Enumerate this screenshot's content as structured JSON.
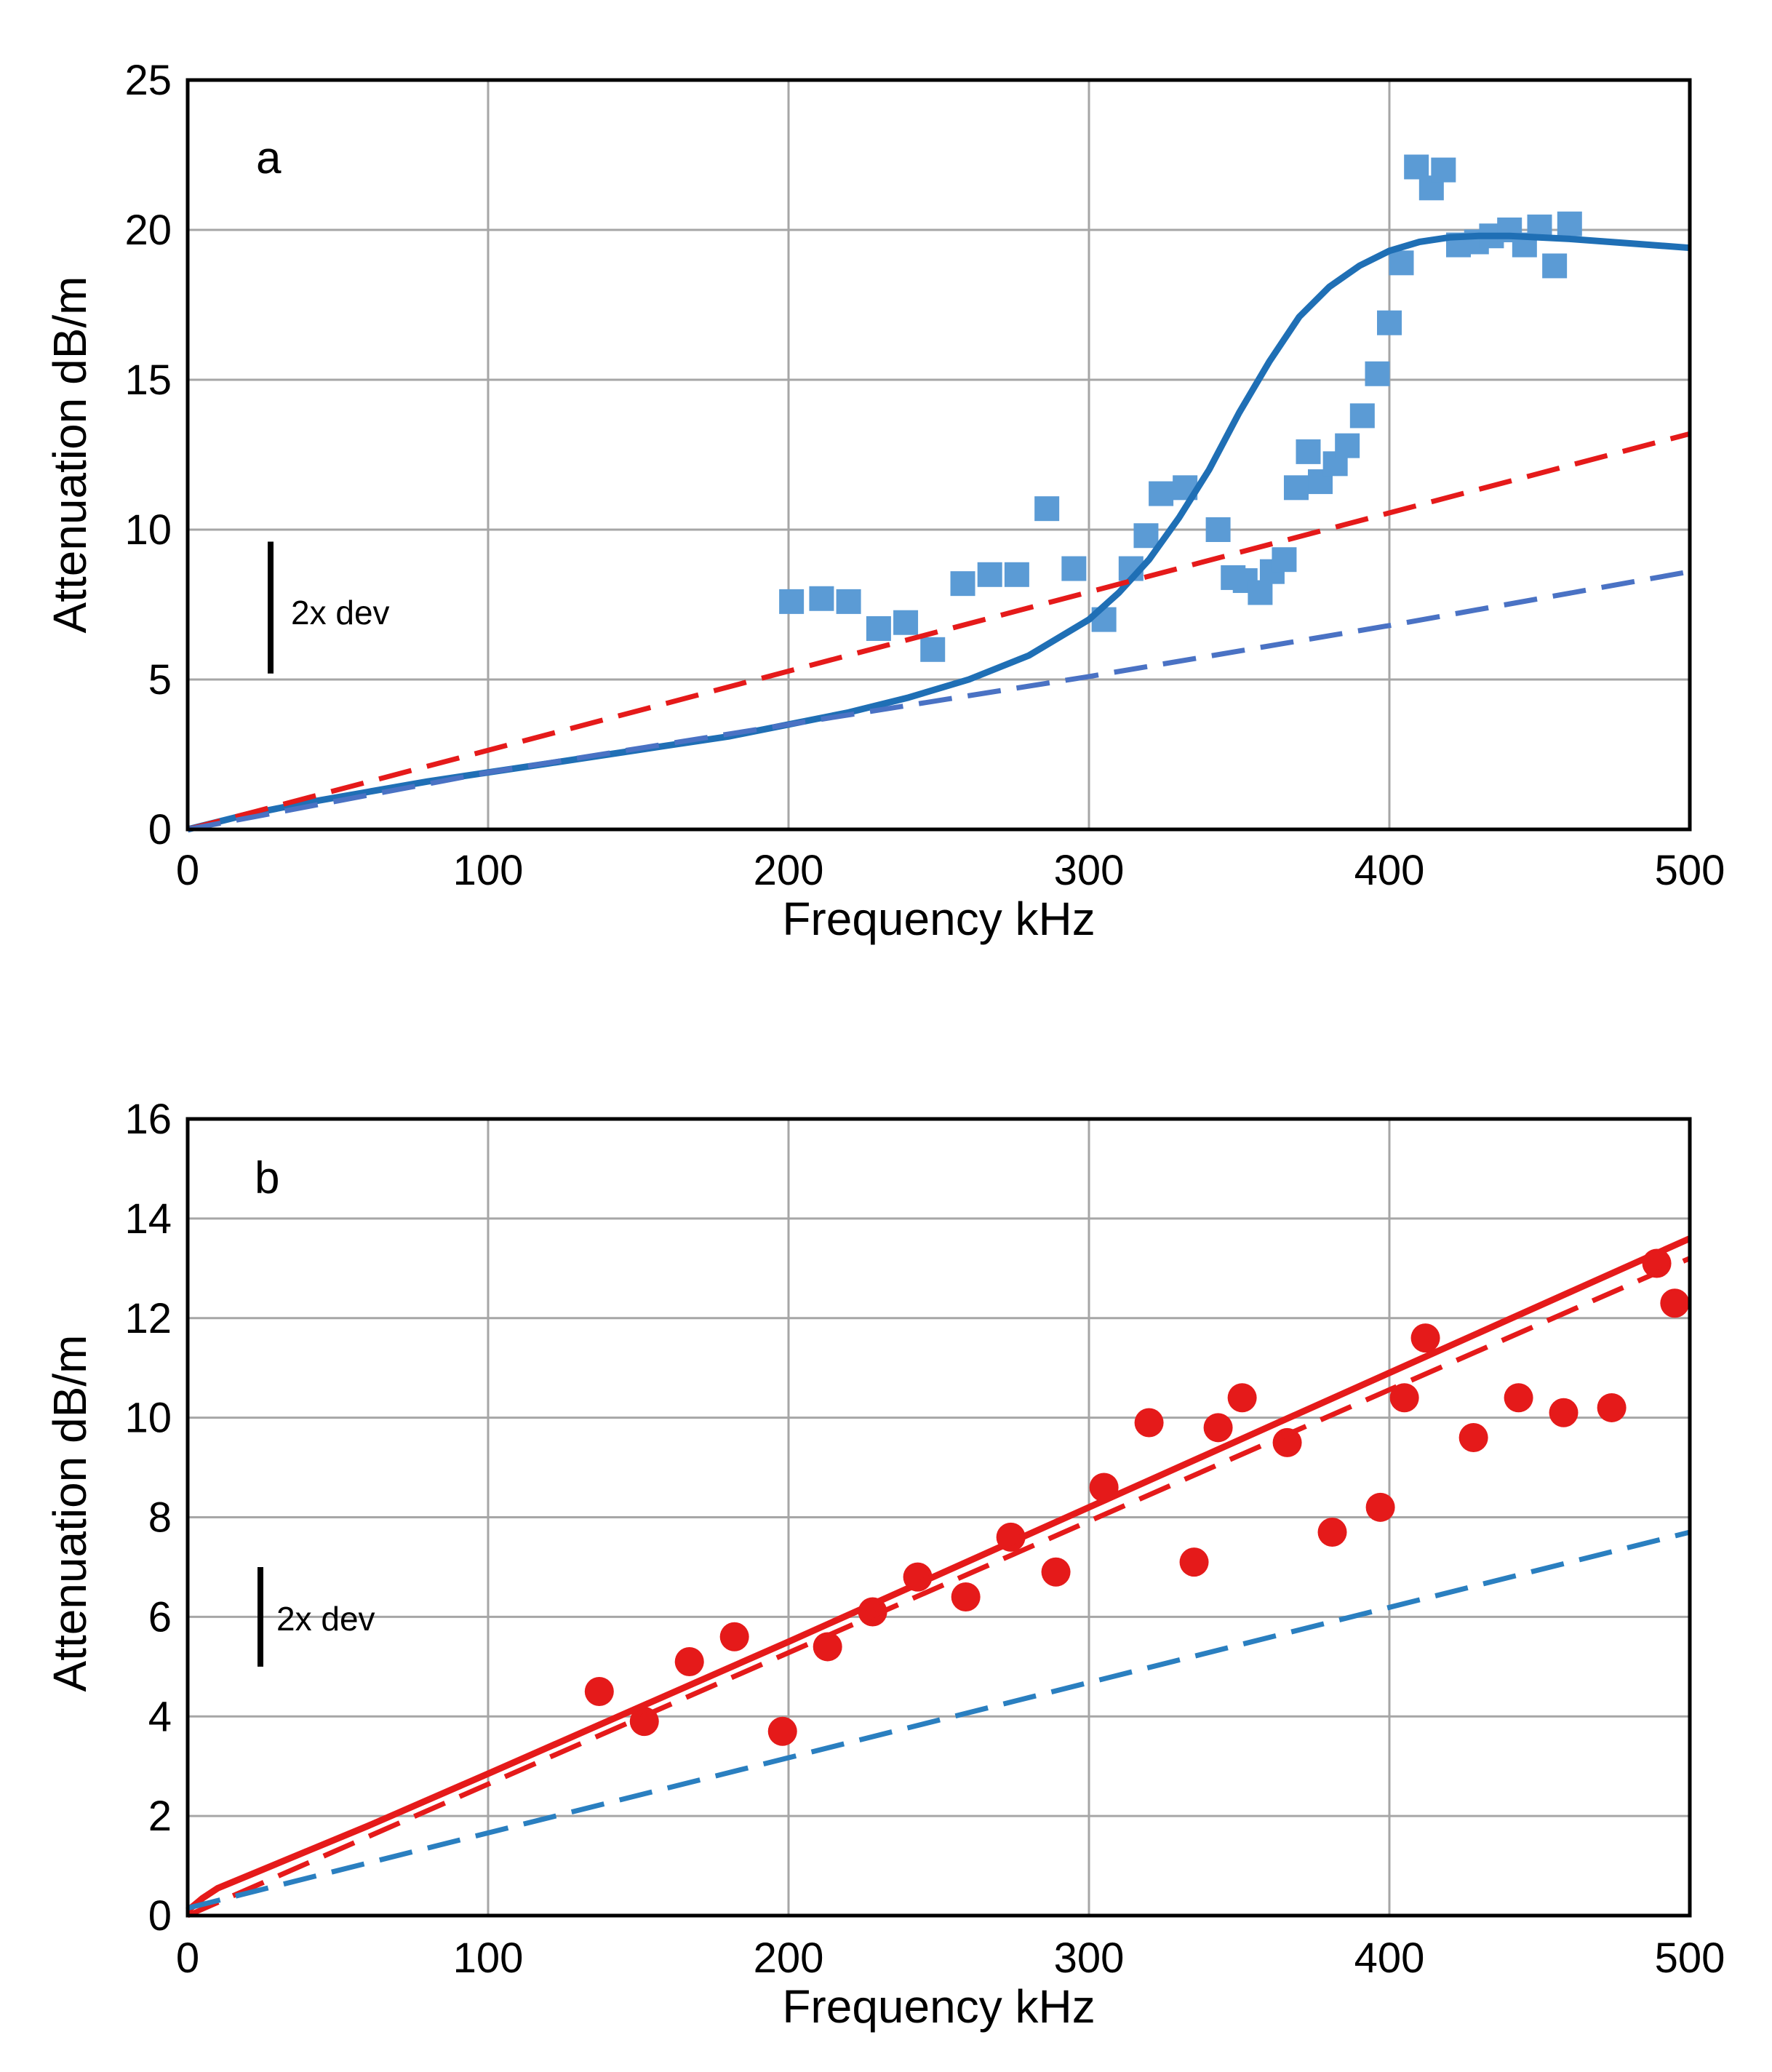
{
  "figure": {
    "colors": {
      "blue_solid": "#1f6fb5",
      "blue_squares": "#5b9bd5",
      "blue_dash_a": "#4a72c4",
      "blue_dash_b": "#2a7fc0",
      "red": "#e51a1a",
      "grid": "#a6a6a6"
    }
  },
  "chart_data": [
    {
      "type": "scatter",
      "panel_label": "a",
      "xlabel": "Frequency  kHz",
      "ylabel": "Attenuation  dB/m",
      "xlim": [
        0,
        500
      ],
      "ylim": [
        0,
        25
      ],
      "xticks": [
        0,
        100,
        200,
        300,
        400,
        500
      ],
      "yticks": [
        0,
        5,
        10,
        15,
        20,
        25
      ],
      "grid": true,
      "error_bar_label": "2x dev",
      "error_bar_range": [
        5.2,
        9.6
      ],
      "series": [
        {
          "kind": "points",
          "marker": "square",
          "color": "#5b9bd5",
          "x": [
            201,
            211,
            220,
            230,
            239,
            248,
            258,
            267,
            276,
            286,
            295,
            305,
            314,
            319,
            324,
            332,
            343,
            348,
            352,
            357,
            361,
            365,
            369,
            373,
            377,
            382,
            386,
            391,
            396,
            400,
            404,
            409,
            414,
            418,
            423,
            429,
            434,
            440,
            445,
            450,
            455,
            460
          ],
          "y": [
            7.6,
            7.7,
            7.6,
            6.7,
            6.9,
            6.0,
            8.2,
            8.5,
            8.5,
            10.7,
            8.7,
            7.0,
            8.7,
            9.8,
            11.2,
            11.4,
            10.0,
            8.4,
            8.3,
            7.9,
            8.6,
            9.0,
            11.4,
            12.6,
            11.6,
            12.2,
            12.8,
            13.8,
            15.2,
            16.9,
            18.9,
            22.1,
            21.4,
            22.0,
            19.5,
            19.6,
            19.8,
            20.0,
            19.5,
            20.1,
            18.8,
            20.2
          ]
        },
        {
          "kind": "line",
          "style": "solid",
          "color": "#1f6fb5",
          "x": [
            0,
            20,
            40,
            60,
            80,
            100,
            120,
            140,
            160,
            180,
            200,
            220,
            240,
            260,
            280,
            300,
            310,
            320,
            330,
            340,
            350,
            360,
            370,
            380,
            390,
            400,
            410,
            420,
            430,
            440,
            460,
            480,
            500
          ],
          "y": [
            0,
            0.5,
            0.9,
            1.25,
            1.6,
            1.9,
            2.2,
            2.5,
            2.8,
            3.1,
            3.5,
            3.9,
            4.4,
            5.0,
            5.8,
            7.0,
            7.9,
            9.0,
            10.4,
            12.0,
            13.9,
            15.6,
            17.1,
            18.1,
            18.8,
            19.3,
            19.6,
            19.75,
            19.8,
            19.8,
            19.7,
            19.55,
            19.4
          ]
        },
        {
          "kind": "line",
          "style": "dashed",
          "color": "#e51a1a",
          "x": [
            0,
            500
          ],
          "y": [
            0,
            13.2
          ]
        },
        {
          "kind": "line",
          "style": "dashed",
          "color": "#4a72c4",
          "x": [
            0,
            100,
            200,
            300,
            400,
            500
          ],
          "y": [
            0,
            1.9,
            3.5,
            5.1,
            6.8,
            8.6
          ]
        }
      ]
    },
    {
      "type": "scatter",
      "panel_label": "b",
      "xlabel": "Frequency  kHz",
      "ylabel": "Attenuation  dB/m",
      "xlim": [
        0,
        500
      ],
      "ylim": [
        0,
        16
      ],
      "xticks": [
        0,
        100,
        200,
        300,
        400,
        500
      ],
      "yticks": [
        0,
        2,
        4,
        6,
        8,
        10,
        12,
        14,
        16
      ],
      "grid": true,
      "error_bar_label": "2x dev",
      "error_bar_range": [
        5.0,
        7.0
      ],
      "series": [
        {
          "kind": "points",
          "marker": "circle",
          "color": "#e51a1a",
          "x": [
            137,
            152,
            167,
            182,
            198,
            213,
            228,
            243,
            259,
            274,
            289,
            305,
            320,
            335,
            343,
            351,
            366,
            381,
            397,
            405,
            412,
            428,
            443,
            458,
            474,
            489,
            495
          ],
          "y": [
            4.5,
            3.9,
            5.1,
            5.6,
            3.7,
            5.4,
            6.1,
            6.8,
            6.4,
            7.6,
            6.9,
            8.6,
            9.9,
            7.1,
            9.8,
            10.4,
            9.5,
            7.7,
            8.2,
            10.4,
            11.6,
            9.6,
            10.4,
            10.1,
            10.2,
            13.1,
            12.3
          ]
        },
        {
          "kind": "line",
          "style": "solid",
          "color": "#e51a1a",
          "x": [
            0,
            5,
            10,
            20,
            40,
            60,
            100,
            200,
            300,
            400,
            500
          ],
          "y": [
            0.1,
            0.35,
            0.55,
            0.8,
            1.3,
            1.8,
            2.85,
            5.5,
            8.2,
            10.9,
            13.6
          ]
        },
        {
          "kind": "line",
          "style": "dashed",
          "color": "#e51a1a",
          "x": [
            0,
            500
          ],
          "y": [
            0,
            13.2
          ]
        },
        {
          "kind": "line",
          "style": "dashed",
          "color": "#2a7fc0",
          "x": [
            0,
            500
          ],
          "y": [
            0.15,
            7.7
          ]
        }
      ]
    }
  ]
}
